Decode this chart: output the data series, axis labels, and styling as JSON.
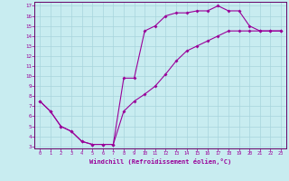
{
  "xlabel": "Windchill (Refroidissement éolien,°C)",
  "bg_color": "#c8ecf0",
  "line_color": "#990099",
  "grid_color": "#a8d4dc",
  "spine_color": "#660066",
  "curve1_x": [
    0,
    1,
    2,
    3,
    4,
    5,
    6,
    7,
    8,
    9,
    10,
    11,
    12,
    13,
    14,
    15,
    16,
    17,
    18,
    19,
    20,
    21,
    22,
    23
  ],
  "curve1_y": [
    7.5,
    6.5,
    5.0,
    4.5,
    3.5,
    3.2,
    3.2,
    3.2,
    9.8,
    9.8,
    14.5,
    15.0,
    16.0,
    16.3,
    16.3,
    16.5,
    16.5,
    17.0,
    16.5,
    16.5,
    15.0,
    14.5,
    14.5,
    14.5
  ],
  "curve2_x": [
    0,
    1,
    2,
    3,
    4,
    5,
    6,
    7,
    8,
    9,
    10,
    11,
    12,
    13,
    14,
    15,
    16,
    17,
    18,
    19,
    20,
    21,
    22,
    23
  ],
  "curve2_y": [
    7.5,
    6.5,
    5.0,
    4.5,
    3.5,
    3.2,
    3.2,
    3.2,
    6.5,
    7.5,
    8.2,
    9.0,
    10.2,
    11.5,
    12.5,
    13.0,
    13.5,
    14.0,
    14.5,
    14.5,
    14.5,
    14.5,
    14.5,
    14.5
  ],
  "xlim": [
    -0.5,
    23.5
  ],
  "ylim": [
    2.8,
    17.4
  ],
  "xticks": [
    0,
    1,
    2,
    3,
    4,
    5,
    6,
    7,
    8,
    9,
    10,
    11,
    12,
    13,
    14,
    15,
    16,
    17,
    18,
    19,
    20,
    21,
    22,
    23
  ],
  "yticks": [
    3,
    4,
    5,
    6,
    7,
    8,
    9,
    10,
    11,
    12,
    13,
    14,
    15,
    16,
    17
  ]
}
